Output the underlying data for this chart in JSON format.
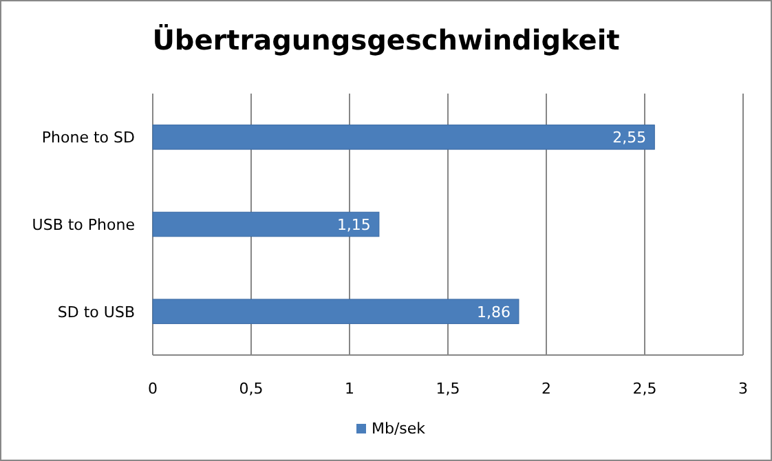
{
  "chart_data": {
    "type": "bar",
    "orientation": "horizontal",
    "title": "Übertragungsgeschwindigkeit",
    "categories": [
      "Phone to SD",
      "USB to Phone",
      "SD to USB"
    ],
    "series": [
      {
        "name": "Mb/sek",
        "color": "#4a7ebb",
        "values": [
          2.55,
          1.15,
          1.86
        ],
        "value_labels": [
          "2,55",
          "1,15",
          "1,86"
        ]
      }
    ],
    "xlim": [
      0,
      3
    ],
    "xticks": [
      0,
      {
        "value": 0.5,
        "label": "0,5"
      },
      1,
      {
        "value": 1.5,
        "label": "1,5"
      },
      2,
      {
        "value": 2.5,
        "label": "2,5"
      },
      3
    ],
    "grid": "x",
    "legend": "bottom"
  }
}
